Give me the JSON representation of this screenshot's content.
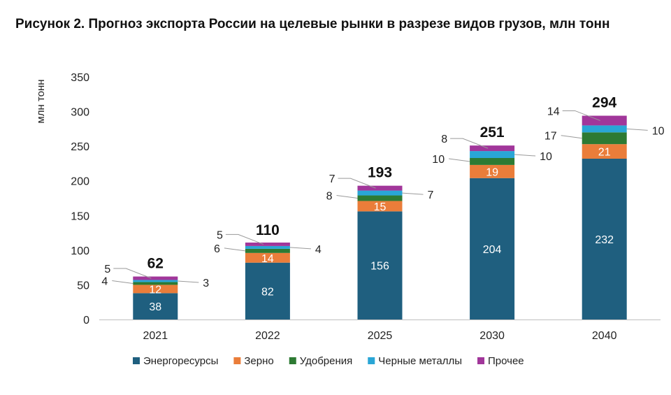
{
  "figure_title": "Рисунок 2. Прогноз экспорта России на целевые рынки в разрезе видов грузов, млн тонн",
  "chart_data": {
    "type": "bar",
    "stacked": true,
    "ylabel": "млн тонн",
    "ylim": [
      0,
      350
    ],
    "yticks": [
      0,
      50,
      100,
      150,
      200,
      250,
      300,
      350
    ],
    "categories": [
      "2021",
      "2022",
      "2025",
      "2030",
      "2040"
    ],
    "series": [
      {
        "name": "Энергоресурсы",
        "color": "#1f5f7f",
        "values": [
          38,
          82,
          156,
          204,
          232
        ]
      },
      {
        "name": "Зерно",
        "color": "#ea7d3a",
        "values": [
          12,
          14,
          15,
          19,
          21
        ]
      },
      {
        "name": "Удобрения",
        "color": "#2d7a33",
        "values": [
          4,
          6,
          8,
          10,
          17
        ]
      },
      {
        "name": "Черные металлы",
        "color": "#2aa6d6",
        "values": [
          3,
          4,
          7,
          10,
          10
        ]
      },
      {
        "name": "Прочее",
        "color": "#a1369a",
        "values": [
          5,
          5,
          7,
          8,
          14
        ]
      }
    ],
    "totals": [
      62,
      110,
      193,
      251,
      294
    ],
    "grid": false,
    "legend_position": "bottom"
  }
}
